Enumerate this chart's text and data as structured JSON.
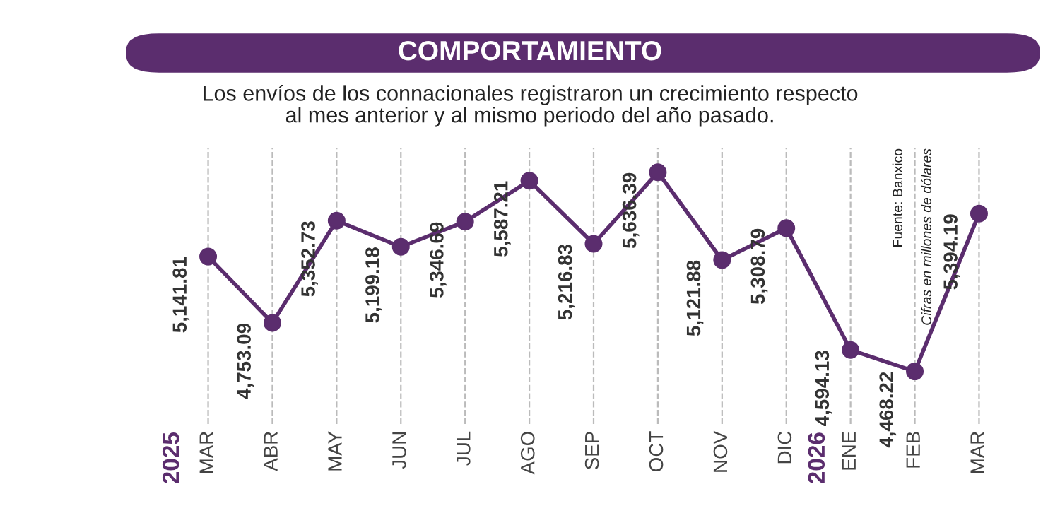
{
  "chart_data": {
    "type": "line",
    "title": "COMPORTAMIENTO",
    "subtitle": "Los envíos de los connacionales registraron un crecimiento respecto\nal mes anterior y al mismo periodo del año pasado.",
    "categories": [
      "MAR",
      "ABR",
      "MAY",
      "JUN",
      "JUL",
      "AGO",
      "SEP",
      "OCT",
      "NOV",
      "DIC",
      "ENE",
      "FEB",
      "MAR"
    ],
    "values": [
      5141.81,
      4753.09,
      5352.73,
      5199.18,
      5346.69,
      5587.21,
      5216.83,
      5636.39,
      5121.88,
      5308.79,
      4594.13,
      4468.22,
      5394.19
    ],
    "value_labels": [
      "5,141.81",
      "4,753.09",
      "5,352.73",
      "5,199.18",
      "5,346.69",
      "5,587.21",
      "5,216.83",
      "5,636.39",
      "5,121.88",
      "5,308.79",
      "4,594.13",
      "4,468.22",
      "5,394.19"
    ],
    "color": "#5b2d6e",
    "marker": "circle",
    "line_style": "solid",
    "grid": "x",
    "legend": false,
    "tick_labels": "x",
    "annotations": [
      "2025",
      "2026",
      "Fuente: Banxico",
      "Cifras en millones de dólares"
    ]
  }
}
